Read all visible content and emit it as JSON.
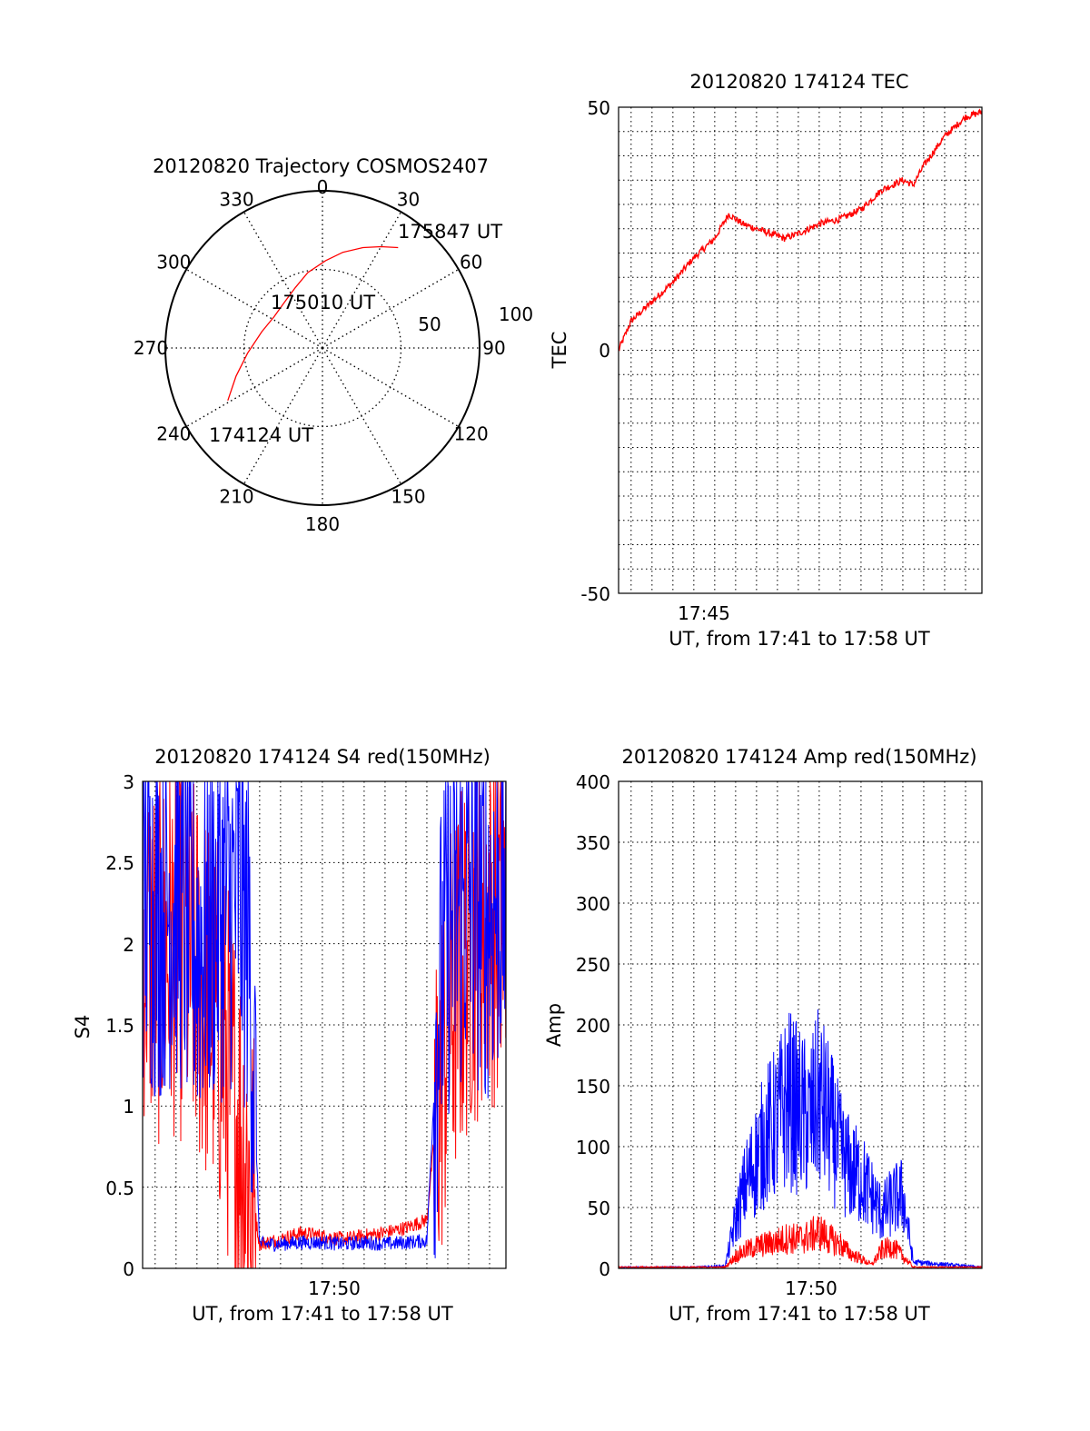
{
  "colors": {
    "red": "#ff0000",
    "blue": "#0000ff",
    "axis": "#000000",
    "grid": "#000000",
    "background": "#ffffff"
  },
  "chart_data": [
    {
      "type": "polar",
      "title": "20120820 Trajectory COSMOS2407",
      "angle_labels": [
        "0",
        "30",
        "60",
        "90",
        "120",
        "150",
        "180",
        "210",
        "240",
        "270",
        "300",
        "330"
      ],
      "angle_values": [
        0,
        30,
        60,
        90,
        120,
        150,
        180,
        210,
        240,
        270,
        300,
        330
      ],
      "radial_labels": [
        "50",
        "100"
      ],
      "grid": true,
      "trajectory": {
        "points": [
          {
            "azimuth": 241,
            "elevation": 28
          },
          {
            "azimuth": 252,
            "elevation": 38
          },
          {
            "azimuth": 266,
            "elevation": 47
          },
          {
            "azimuth": 285,
            "elevation": 54
          },
          {
            "azimuth": 303,
            "elevation": 57
          },
          {
            "azimuth": 320,
            "elevation": 56
          },
          {
            "azimuth": 336,
            "elevation": 52
          },
          {
            "azimuth": 349,
            "elevation": 46
          },
          {
            "azimuth": 2,
            "elevation": 40
          },
          {
            "azimuth": 12,
            "elevation": 34
          },
          {
            "azimuth": 22,
            "elevation": 28
          },
          {
            "azimuth": 30,
            "elevation": 23
          },
          {
            "azimuth": 37,
            "elevation": 18
          }
        ],
        "labels": [
          "174124 UT",
          "175010 UT",
          "175847 UT"
        ]
      }
    },
    {
      "type": "line",
      "title": "20120820 174124 TEC",
      "xlabel": "UT, from 17:41 to 17:58 UT",
      "ylabel": "TEC",
      "xlim": [
        "17:41:24",
        "17:58:47"
      ],
      "ylim": [
        -50,
        50
      ],
      "xticks": [
        "17:45"
      ],
      "yticks": [
        "-50",
        "0",
        "50"
      ],
      "grid": true,
      "series": [
        {
          "color": "red",
          "x": [
            "17:41:24",
            "17:42:00",
            "17:43:00",
            "17:44:00",
            "17:45:00",
            "17:46:00",
            "17:46:40",
            "17:47:20",
            "17:48:00",
            "17:48:40",
            "17:49:20",
            "17:50:00",
            "17:51:00",
            "17:52:00",
            "17:53:00",
            "17:54:00",
            "17:55:00",
            "17:55:30",
            "17:56:00",
            "17:57:00",
            "17:58:00",
            "17:58:47"
          ],
          "values": [
            0,
            6,
            10,
            14,
            19,
            23,
            28,
            26,
            25,
            24,
            23,
            24,
            26,
            27,
            29,
            33,
            35,
            34,
            38,
            44,
            48,
            49
          ]
        }
      ]
    },
    {
      "type": "line",
      "title": "20120820 174124 S4 red(150MHz)",
      "xlabel": "UT, from 17:41 to 17:58 UT",
      "ylabel": "S4",
      "xlim": [
        "17:41:24",
        "17:58:47"
      ],
      "ylim": [
        0,
        3
      ],
      "xticks": [
        "17:50"
      ],
      "yticks": [
        "0",
        "0.5",
        "1",
        "1.5",
        "2",
        "2.5",
        "3"
      ],
      "grid": true,
      "series": [
        {
          "color": "red",
          "x": [
            "17:41:24",
            "17:42:00",
            "17:43:00",
            "17:44:00",
            "17:45:00",
            "17:46:00",
            "17:46:30",
            "17:47:00",
            "17:48:00",
            "17:49:00",
            "17:50:00",
            "17:51:00",
            "17:52:00",
            "17:53:00",
            "17:54:00",
            "17:55:00",
            "17:55:30",
            "17:56:00",
            "17:57:00",
            "17:58:00",
            "17:58:47"
          ],
          "values": [
            2.1,
            1.9,
            2.0,
            1.8,
            1.5,
            0.9,
            0.55,
            0.15,
            0.18,
            0.22,
            0.2,
            0.18,
            0.2,
            0.22,
            0.25,
            0.3,
            1.0,
            1.5,
            2.0,
            2.2,
            2.1
          ]
        },
        {
          "color": "blue",
          "x": [
            "17:41:24",
            "17:42:00",
            "17:43:00",
            "17:44:00",
            "17:45:00",
            "17:46:00",
            "17:46:30",
            "17:47:00",
            "17:48:00",
            "17:49:00",
            "17:50:00",
            "17:51:00",
            "17:52:00",
            "17:53:00",
            "17:54:00",
            "17:55:00",
            "17:55:30",
            "17:56:00",
            "17:57:00",
            "17:58:00",
            "17:58:47"
          ],
          "values": [
            2.3,
            2.2,
            2.3,
            2.0,
            2.2,
            2.3,
            2.0,
            0.15,
            0.15,
            0.16,
            0.16,
            0.15,
            0.16,
            0.15,
            0.16,
            0.17,
            1.5,
            2.1,
            2.3,
            2.2,
            2.4
          ]
        }
      ]
    },
    {
      "type": "line",
      "title": "20120820 174124 Amp red(150MHz)",
      "xlabel": "UT, from 17:41 to 17:58 UT",
      "ylabel": "Amp",
      "xlim": [
        "17:41:24",
        "17:58:47"
      ],
      "ylim": [
        0,
        400
      ],
      "xticks": [
        "17:50"
      ],
      "yticks": [
        "0",
        "50",
        "100",
        "150",
        "200",
        "250",
        "300",
        "350",
        "400"
      ],
      "grid": true,
      "series": [
        {
          "color": "blue",
          "x": [
            "17:41:24",
            "17:45:00",
            "17:46:30",
            "17:47:00",
            "17:47:30",
            "17:48:00",
            "17:48:30",
            "17:49:00",
            "17:49:30",
            "17:50:00",
            "17:50:30",
            "17:51:00",
            "17:51:30",
            "17:52:00",
            "17:52:30",
            "17:53:00",
            "17:53:30",
            "17:54:00",
            "17:54:30",
            "17:55:00",
            "17:55:30",
            "17:58:47"
          ],
          "values": [
            1,
            1,
            2,
            40,
            70,
            90,
            110,
            120,
            140,
            130,
            120,
            140,
            120,
            95,
            80,
            75,
            60,
            45,
            55,
            60,
            5,
            1
          ]
        },
        {
          "color": "red",
          "x": [
            "17:41:24",
            "17:45:00",
            "17:46:30",
            "17:47:00",
            "17:47:30",
            "17:48:00",
            "17:48:30",
            "17:49:00",
            "17:49:30",
            "17:50:00",
            "17:50:30",
            "17:51:00",
            "17:51:30",
            "17:52:00",
            "17:52:30",
            "17:53:00",
            "17:53:30",
            "17:54:00",
            "17:54:30",
            "17:55:00",
            "17:55:30",
            "17:58:47"
          ],
          "values": [
            1,
            1,
            1,
            10,
            15,
            18,
            20,
            22,
            25,
            24,
            26,
            30,
            24,
            20,
            12,
            8,
            3,
            15,
            18,
            10,
            1,
            1
          ]
        }
      ]
    }
  ]
}
